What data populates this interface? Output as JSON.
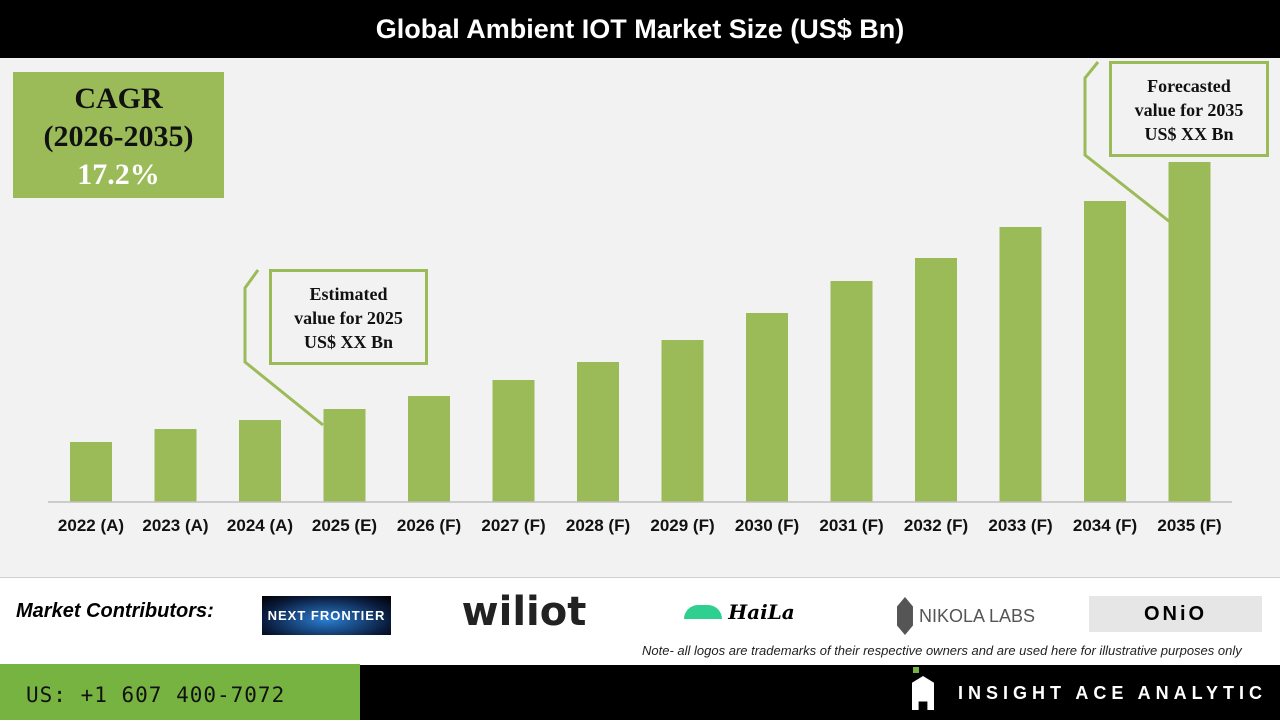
{
  "title": "Global Ambient IOT Market Size (US$ Bn)",
  "cagr": {
    "label": "CAGR",
    "period": "(2026-2035)",
    "value": "17.2%"
  },
  "callouts": {
    "estimated": [
      "Estimated",
      "value for 2025",
      "US$ XX Bn"
    ],
    "forecasted": [
      "Forecasted",
      "value for 2035",
      "US$ XX Bn"
    ]
  },
  "chart_data": {
    "type": "bar",
    "title": "Global Ambient IOT Market Size (US$ Bn)",
    "categories": [
      "2022 (A)",
      "2023 (A)",
      "2024 (A)",
      "2025 (E)",
      "2026 (F)",
      "2027 (F)",
      "2028 (F)",
      "2029 (F)",
      "2030 (F)",
      "2031 (F)",
      "2032 (F)",
      "2033 (F)",
      "2034 (F)",
      "2035 (F)"
    ],
    "values": [
      60,
      73,
      82,
      93,
      106,
      122,
      140,
      162,
      189,
      221,
      244,
      275,
      301,
      340
    ],
    "values_note_unit": "relative (no y-axis printed)",
    "xlabel": "",
    "ylabel": "",
    "grid": false,
    "color": "#9bbb59"
  },
  "contributors": {
    "label": "Market Contributors:",
    "logos": [
      "NEXT FRONTIER",
      "wiliot",
      "HaiLa",
      "NIKOLA LABS",
      "ONiO"
    ]
  },
  "note": "Note- all logos are trademarks of their respective owners and are used here for illustrative purposes only",
  "footer": {
    "phone": "US: +1 607 400-7072",
    "brand": "INSIGHT ACE ANALYTIC"
  },
  "colors": {
    "accent": "#9bbb59",
    "footer_green": "#77b341"
  }
}
